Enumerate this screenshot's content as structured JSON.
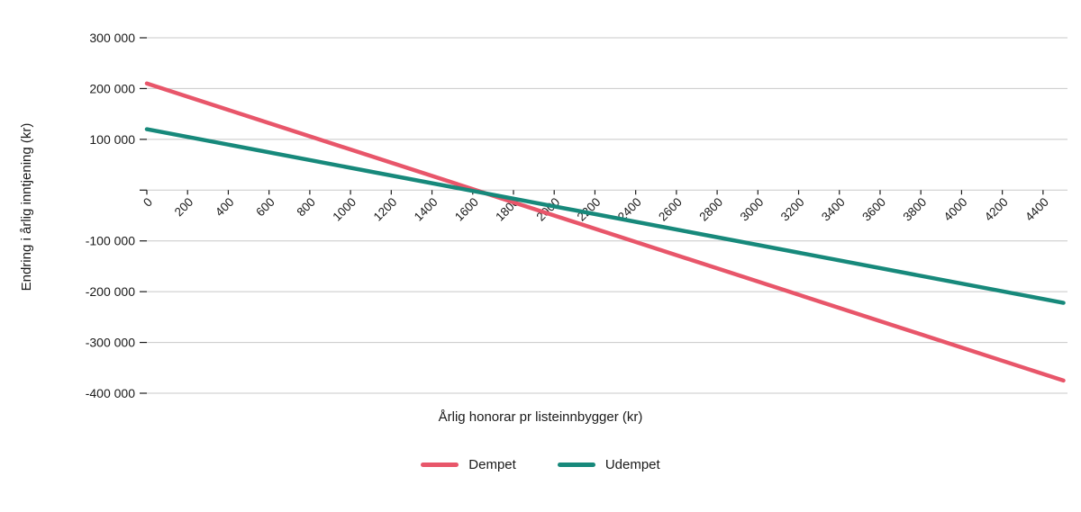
{
  "chart_data": {
    "type": "line",
    "title": "",
    "xlabel": "Årlig honorar pr listeinnbygger (kr)",
    "ylabel": "Endring i årlig inntjening (kr)",
    "xlim": [
      0,
      4520
    ],
    "ylim": [
      -400000,
      300000
    ],
    "x_ticks": [
      0,
      200,
      400,
      600,
      800,
      1000,
      1200,
      1400,
      1600,
      1800,
      2000,
      2200,
      2400,
      2600,
      2800,
      3000,
      3200,
      3400,
      3600,
      3800,
      4000,
      4200,
      4400
    ],
    "y_ticks": [
      300000,
      200000,
      100000,
      0,
      -100000,
      -200000,
      -300000,
      -400000
    ],
    "y_tick_labels": [
      "300 000",
      "200 000",
      "100 000",
      "",
      "-100 000",
      "-200 000",
      "-300 000",
      "-400 000"
    ],
    "grid": true,
    "grid_color": "#c8c8c8",
    "tick_color": "#1a1a1a",
    "legend_position": "bottom",
    "series": [
      {
        "name": "Dempet",
        "color": "#e8566a",
        "x": [
          0,
          4500
        ],
        "y": [
          210000,
          -375000
        ]
      },
      {
        "name": "Udempet",
        "color": "#17897b",
        "x": [
          0,
          4500
        ],
        "y": [
          120000,
          -222000
        ]
      }
    ]
  }
}
